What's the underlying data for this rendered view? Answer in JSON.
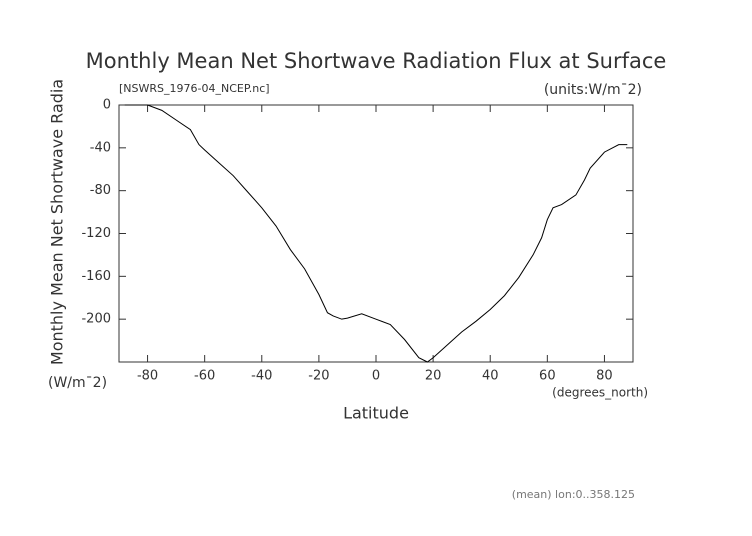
{
  "chart_data": {
    "type": "line",
    "title": "Monthly Mean Net Shortwave Radiation Flux at Surface",
    "subtitle": "[NSWRS_1976-04_NCEP.nc]",
    "units_label": "(units:W/m¯2)",
    "y_label": "Monthly Mean Net Shortwave Radia",
    "y_units": "(W/m¯2)",
    "x_label": "Latitude",
    "x_units": "(degrees_north)",
    "footnote": "(mean) lon:0..358.125",
    "color": "#000000",
    "x": [
      -88,
      -80,
      -75,
      -70,
      -65,
      -62,
      -60,
      -55,
      -50,
      -45,
      -40,
      -35,
      -30,
      -25,
      -20,
      -17,
      -15,
      -12,
      -10,
      -5,
      0,
      5,
      10,
      15,
      18,
      20,
      25,
      30,
      35,
      40,
      45,
      50,
      55,
      58,
      60,
      62,
      65,
      70,
      73,
      75,
      80,
      85,
      88
    ],
    "values": [
      0,
      0,
      -5,
      -14,
      -23,
      -37,
      -42,
      -54,
      -66,
      -81,
      -96,
      -113,
      -135,
      -153,
      -177,
      -194,
      -197,
      -200,
      -199,
      -195,
      -200,
      -205,
      -219,
      -236,
      -240,
      -236,
      -224,
      -212,
      -202,
      -191,
      -178,
      -161,
      -140,
      -124,
      -107,
      -96,
      -93,
      -84,
      -70,
      -59,
      -44,
      -37,
      -37
    ],
    "xlim": [
      -90,
      90
    ],
    "ylim": [
      -240,
      0
    ],
    "xticks": [
      -80,
      -60,
      -40,
      -20,
      0,
      20,
      40,
      60,
      80
    ],
    "yticks": [
      0,
      -40,
      -80,
      -120,
      -160,
      -200
    ]
  }
}
